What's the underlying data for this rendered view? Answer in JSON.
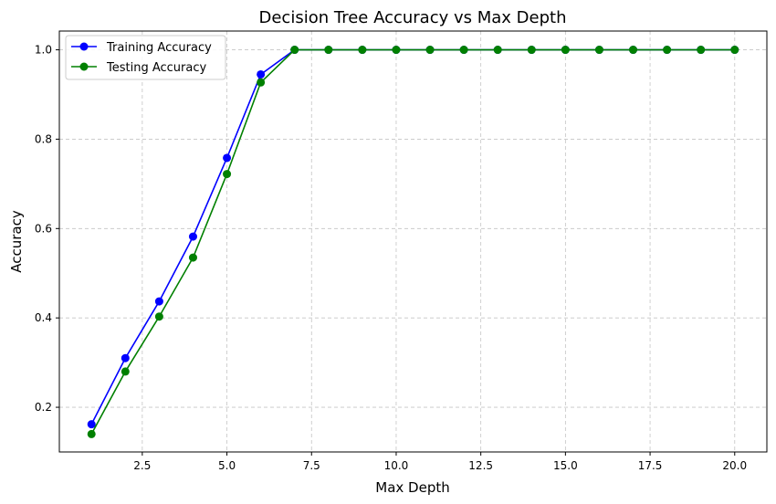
{
  "chart_data": {
    "type": "line",
    "title": "Decision Tree Accuracy vs Max Depth",
    "xlabel": "Max Depth",
    "ylabel": "Accuracy",
    "x": [
      1,
      2,
      3,
      4,
      5,
      6,
      7,
      8,
      9,
      10,
      11,
      12,
      13,
      14,
      15,
      16,
      17,
      18,
      19,
      20
    ],
    "xlim": [
      0.05,
      20.95
    ],
    "ylim": [
      0.1,
      1.042
    ],
    "xticks": [
      2.5,
      5.0,
      7.5,
      10.0,
      12.5,
      15.0,
      17.5,
      20.0
    ],
    "xtick_labels": [
      "2.5",
      "5.0",
      "7.5",
      "10.0",
      "12.5",
      "15.0",
      "17.5",
      "20.0"
    ],
    "yticks": [
      0.2,
      0.4,
      0.6,
      0.8,
      1.0
    ],
    "ytick_labels": [
      "0.2",
      "0.4",
      "0.6",
      "0.8",
      "1.0"
    ],
    "grid": true,
    "grid_style": "dashed",
    "legend_position": "upper-left",
    "series": [
      {
        "name": "Training Accuracy",
        "color": "#0000ff",
        "marker": "circle",
        "values": [
          0.162,
          0.31,
          0.437,
          0.582,
          0.758,
          0.945,
          1.0,
          1.0,
          1.0,
          1.0,
          1.0,
          1.0,
          1.0,
          1.0,
          1.0,
          1.0,
          1.0,
          1.0,
          1.0,
          1.0
        ]
      },
      {
        "name": "Testing Accuracy",
        "color": "#008000",
        "marker": "circle",
        "values": [
          0.14,
          0.28,
          0.403,
          0.535,
          0.722,
          0.927,
          1.0,
          1.0,
          1.0,
          1.0,
          1.0,
          1.0,
          1.0,
          1.0,
          1.0,
          1.0,
          1.0,
          1.0,
          1.0,
          1.0
        ]
      }
    ]
  }
}
